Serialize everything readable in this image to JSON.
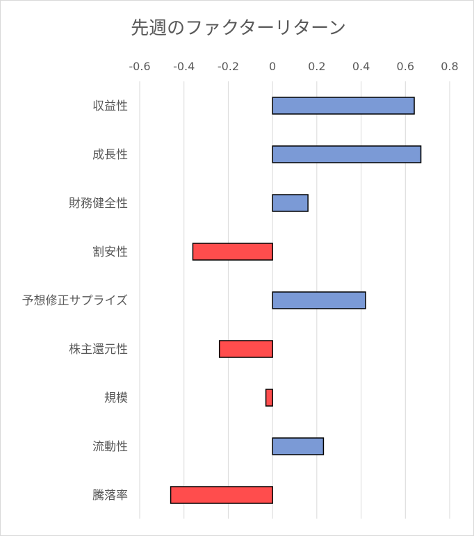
{
  "chart_data": {
    "type": "bar",
    "orientation": "horizontal",
    "title": "先週のファクターリターン",
    "xlabel": "",
    "ylabel": "",
    "xlim": [
      -0.6,
      0.8
    ],
    "xticks": [
      -0.6,
      -0.4,
      -0.2,
      0,
      0.2,
      0.4,
      0.6,
      0.8
    ],
    "xtick_labels": [
      "-0.6",
      "-0.4",
      "-0.2",
      "0",
      "0.2",
      "0.4",
      "0.6",
      "0.8"
    ],
    "x_axis_position": "top",
    "grid": true,
    "categories": [
      "収益性",
      "成長性",
      "財務健全性",
      "割安性",
      "予想修正サプライズ",
      "株主還元性",
      "規模",
      "流動性",
      "騰落率"
    ],
    "values": [
      0.64,
      0.67,
      0.16,
      -0.36,
      0.42,
      -0.24,
      -0.03,
      0.23,
      -0.46
    ],
    "colors": {
      "positive": "#7b9ad6",
      "negative": "#ff4d4d",
      "bar_border": "#000000",
      "grid": "#d9d9d9",
      "text": "#595959"
    }
  }
}
